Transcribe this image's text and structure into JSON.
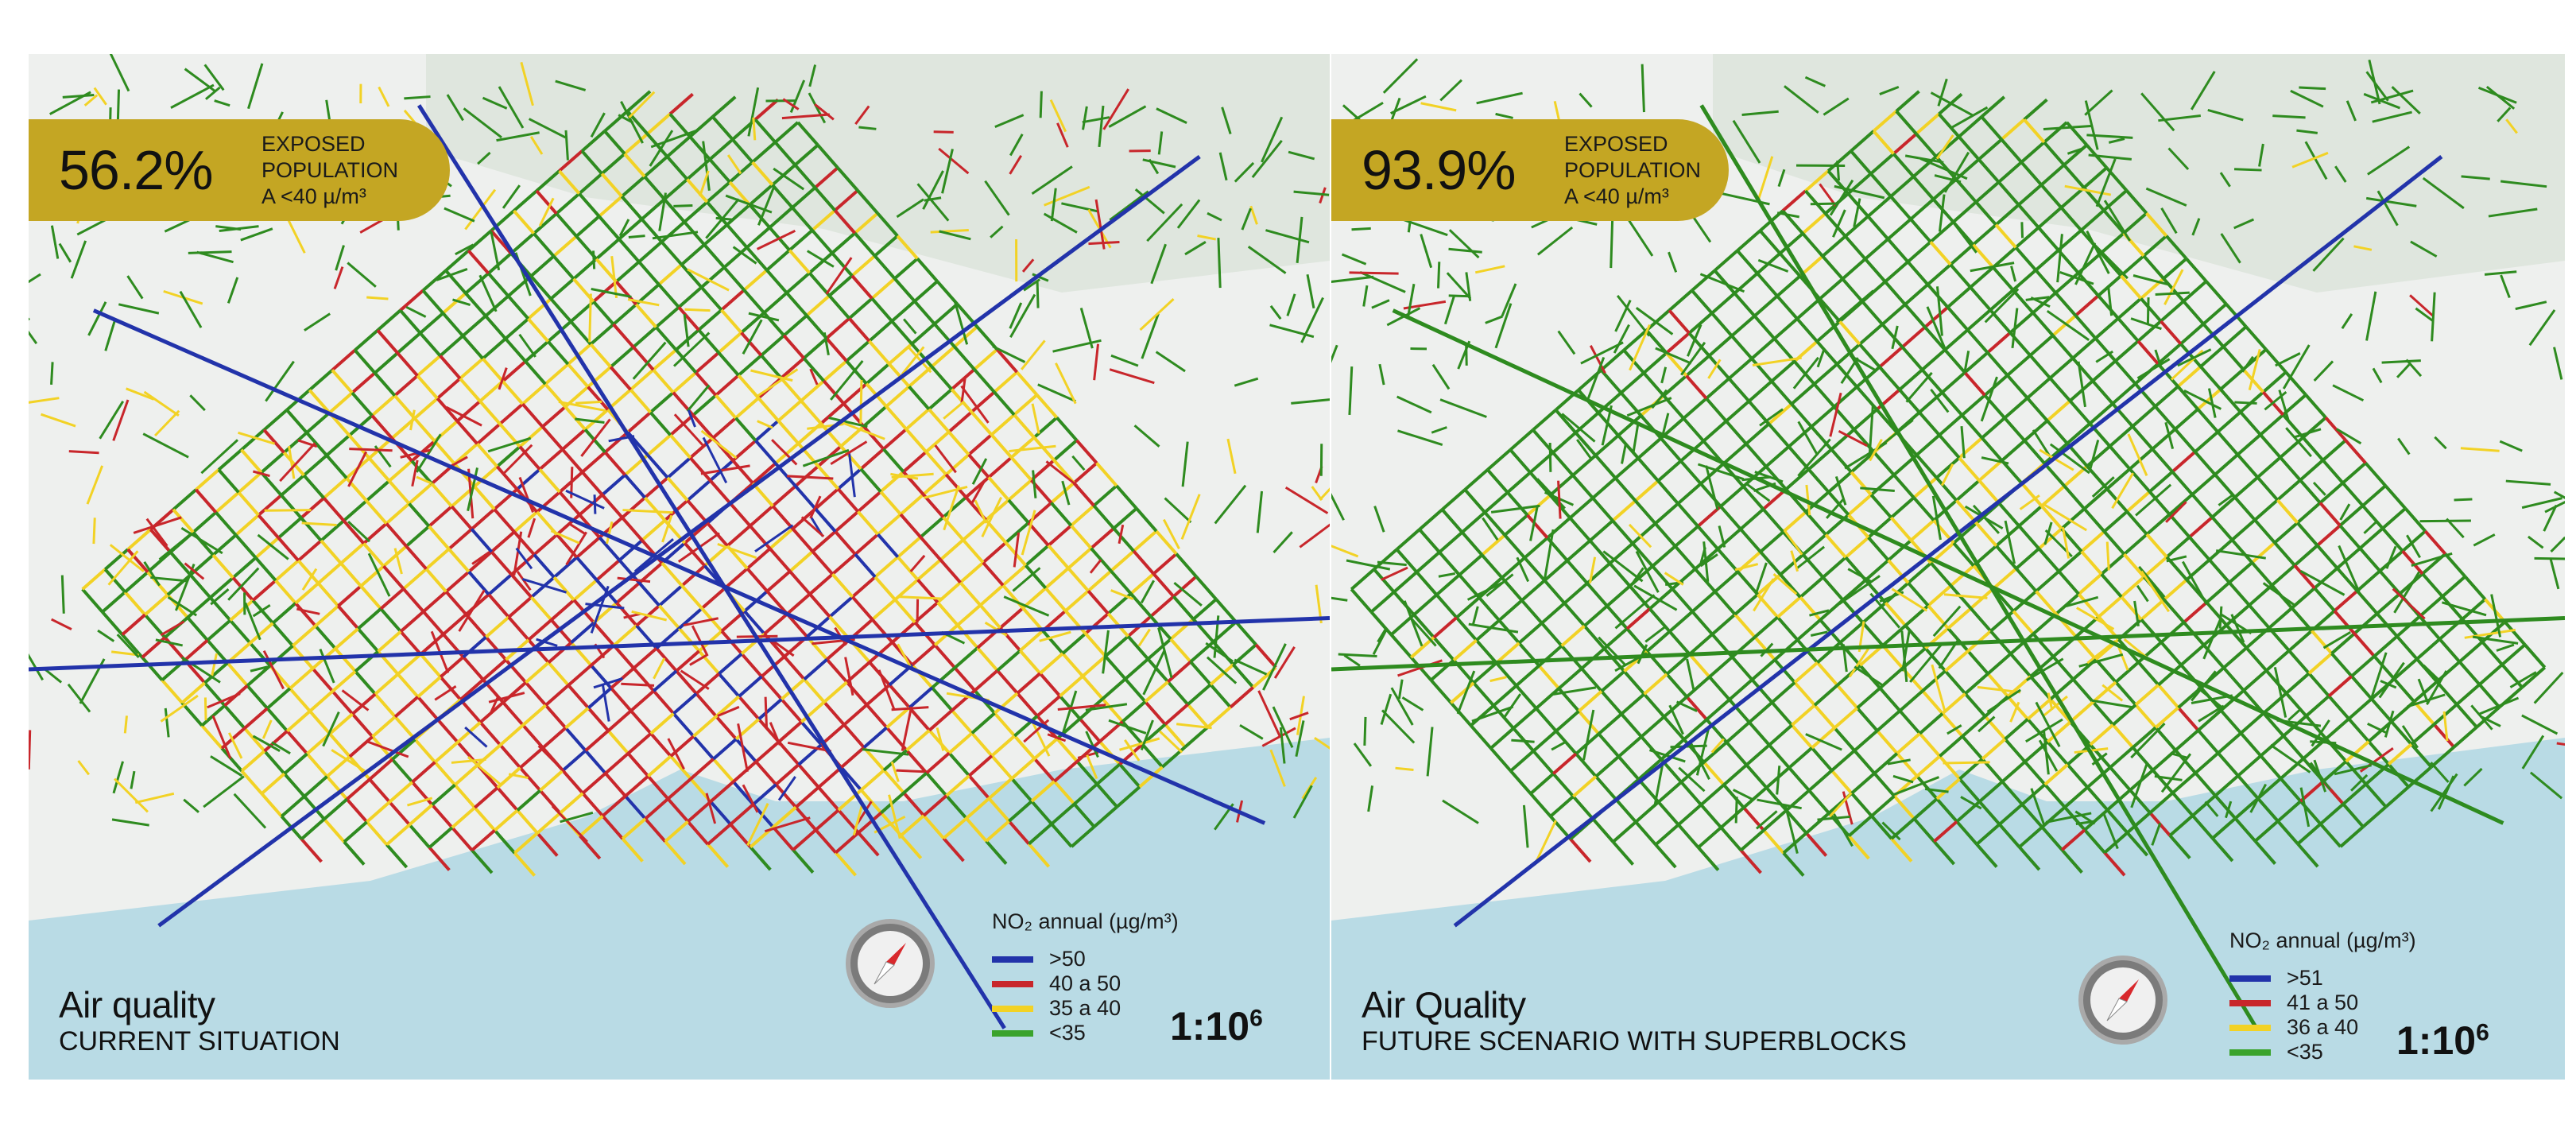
{
  "colors": {
    "blue": "#2233aa",
    "red": "#c8262b",
    "yellow": "#f2d225",
    "green": "#2e8b1f",
    "badge": "#c4a623",
    "sea": "#b9dbe5"
  },
  "left": {
    "percent": "56.2%",
    "exposed": "EXPOSED",
    "population": "POPULATION",
    "threshold": "A <40 µ/m³",
    "title": "Air quality",
    "subtitle": "CURRENT SITUATION",
    "legend_title": "NO₂ annual (µg/m³)",
    "legend": [
      {
        "label": ">50",
        "color": "#2233aa"
      },
      {
        "label": "40 a 50",
        "color": "#c8262b"
      },
      {
        "label": "35 a 40",
        "color": "#f2d225"
      },
      {
        "label": "<35",
        "color": "#3aa32c"
      }
    ],
    "scale": "1:10",
    "scale_exp": "6"
  },
  "right": {
    "percent": "93.9%",
    "exposed": "EXPOSED",
    "population": "POPULATION",
    "threshold": "A <40 µ/m³",
    "title": "Air Quality",
    "subtitle": "FUTURE SCENARIO WITH SUPERBLOCKS",
    "legend_title": "NO₂ annual (µg/m³)",
    "legend": [
      {
        "label": ">51",
        "color": "#2233aa"
      },
      {
        "label": "41 a 50",
        "color": "#c8262b"
      },
      {
        "label": "36 a 40",
        "color": "#f2d225"
      },
      {
        "label": "<35",
        "color": "#3aa32c"
      }
    ],
    "scale": "1:10",
    "scale_exp": "6"
  }
}
